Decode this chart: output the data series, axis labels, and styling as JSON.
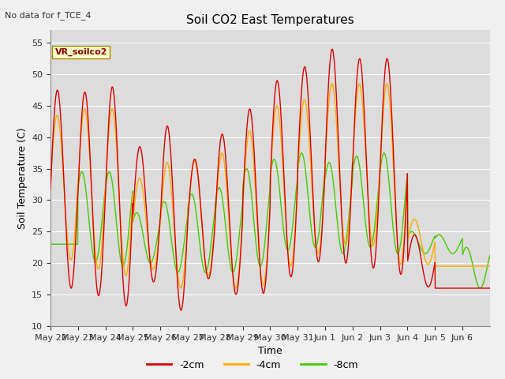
{
  "title": "Soil CO2 East Temperatures",
  "xlabel": "Time",
  "ylabel": "Soil Temperature (C)",
  "note": "No data for f_TCE_4",
  "annotation": "VR_soilco2",
  "ylim": [
    10,
    57
  ],
  "yticks": [
    10,
    15,
    20,
    25,
    30,
    35,
    40,
    45,
    50,
    55
  ],
  "colors": {
    "-2cm": "#dd0000",
    "-4cm": "#ffaa00",
    "-8cm": "#44cc00"
  },
  "legend_labels": [
    "-2cm",
    "-4cm",
    "-8cm"
  ],
  "background_color": "#dcdcdc",
  "fig_color": "#f0f0f0",
  "grid_color": "#ffffff",
  "num_days": 16,
  "day_labels": [
    "May 22",
    "May 23",
    "May 24",
    "May 25",
    "May 26",
    "May 27",
    "May 28",
    "May 29",
    "May 30",
    "May 31",
    "Jun 1",
    "Jun 2",
    "Jun 3",
    "Jun 4",
    "Jun 5",
    "Jun 6"
  ],
  "daily_peaks_2cm": [
    47.5,
    47.2,
    48.0,
    38.5,
    41.8,
    36.5,
    40.5,
    44.5,
    49.0,
    51.2,
    54.0,
    52.5,
    52.5,
    24.5,
    16.0,
    16.0
  ],
  "daily_troughs_2cm": [
    16.0,
    14.8,
    13.2,
    17.0,
    12.5,
    17.5,
    15.0,
    15.2,
    17.8,
    20.2,
    20.0,
    19.2,
    18.2,
    16.2,
    16.0,
    16.0
  ],
  "daily_peaks_4cm": [
    43.5,
    44.5,
    44.5,
    33.5,
    36.0,
    36.2,
    37.5,
    41.0,
    45.0,
    46.0,
    48.5,
    48.5,
    48.5,
    27.0,
    19.5,
    19.5
  ],
  "daily_troughs_4cm": [
    20.5,
    19.0,
    18.0,
    19.0,
    16.0,
    18.0,
    16.0,
    16.5,
    19.5,
    21.5,
    22.8,
    22.8,
    19.8,
    19.8,
    19.5,
    19.5
  ],
  "daily_peaks_8cm": [
    23.0,
    34.5,
    34.5,
    28.0,
    29.8,
    31.0,
    32.0,
    35.0,
    36.5,
    37.5,
    36.0,
    37.0,
    37.5,
    25.0,
    24.5,
    22.5
  ],
  "daily_troughs_8cm": [
    23.0,
    20.2,
    19.5,
    20.0,
    18.5,
    18.5,
    18.5,
    19.5,
    22.0,
    22.5,
    21.5,
    22.5,
    21.5,
    21.5,
    21.5,
    16.0
  ],
  "phase_2cm": 0.0,
  "phase_4cm": 0.05,
  "phase_8cm": 0.7
}
